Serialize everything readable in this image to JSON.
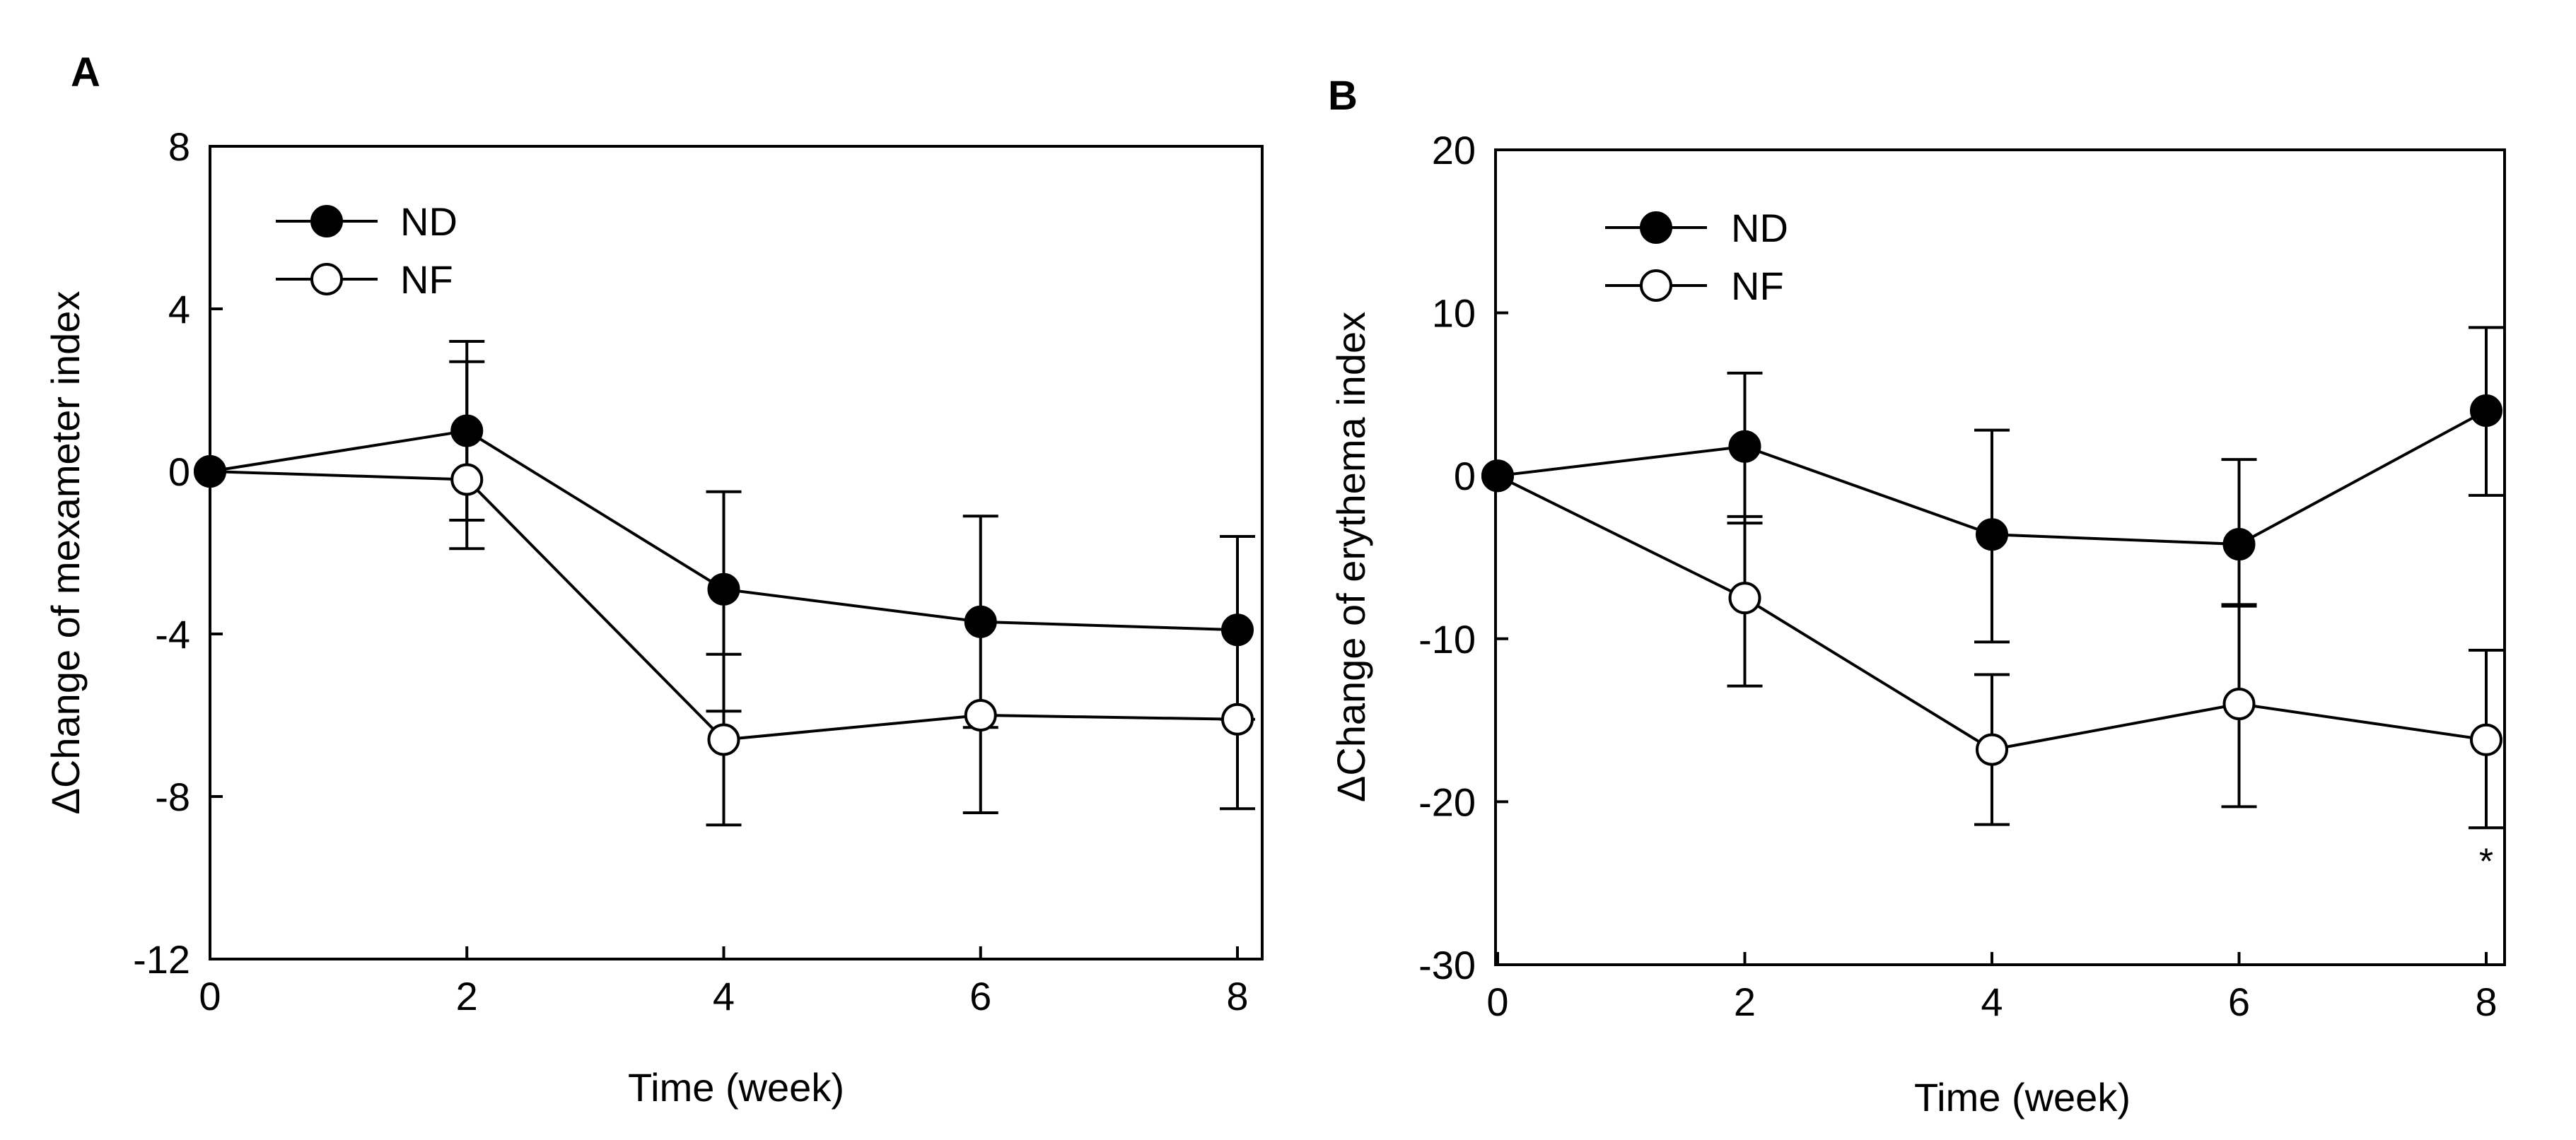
{
  "panels": [
    {
      "panel_label": "A",
      "xlabel": "Time (week)",
      "ylabel": "ΔChange of mexameter index",
      "x_ticks": [
        "0",
        "2",
        "4",
        "6",
        "8"
      ],
      "y_ticks": [
        "8",
        "4",
        "0",
        "-4",
        "-8",
        "-12"
      ],
      "legend": [
        "ND",
        "NF"
      ],
      "annotations": []
    },
    {
      "panel_label": "B",
      "xlabel": "Time (week)",
      "ylabel": "ΔChange of erythema index",
      "x_ticks": [
        "0",
        "2",
        "4",
        "6",
        "8"
      ],
      "y_ticks": [
        "20",
        "10",
        "0",
        "-10",
        "-20",
        "-30"
      ],
      "legend": [
        "ND",
        "NF"
      ],
      "annotations": [
        {
          "text": "*",
          "x": 8,
          "series": "NF"
        }
      ]
    }
  ],
  "chart_data": [
    {
      "type": "line",
      "title": "",
      "xlabel": "Time (week)",
      "ylabel": "ΔChange of mexameter index",
      "xlim": [
        0,
        8.5
      ],
      "ylim": [
        -12,
        8
      ],
      "x": [
        0,
        2,
        4,
        6,
        8
      ],
      "legend_position": "top-left",
      "grid": false,
      "series": [
        {
          "name": "ND",
          "marker": "filled-circle",
          "color": "#000000",
          "values": [
            0,
            1.0,
            -2.9,
            -3.7,
            -3.9
          ],
          "err_lower": [
            0,
            2.9,
            3.0,
            2.6,
            2.2
          ],
          "err_upper": [
            0,
            2.2,
            2.4,
            2.6,
            2.3
          ],
          "err_direction": "both"
        },
        {
          "name": "NF",
          "marker": "open-circle",
          "color": "#000000",
          "values": [
            0,
            -0.2,
            -6.6,
            -6.0,
            -6.1
          ],
          "err_lower": [
            0,
            1.0,
            2.1,
            2.4,
            2.2
          ],
          "err_upper": [
            0,
            2.9,
            2.1,
            0.0,
            0.0
          ],
          "err_direction": "both"
        }
      ]
    },
    {
      "type": "line",
      "title": "",
      "xlabel": "Time (week)",
      "ylabel": "ΔChange of erythema index",
      "xlim": [
        0,
        8.5
      ],
      "ylim": [
        -30,
        20
      ],
      "x": [
        0,
        2,
        4,
        6,
        8
      ],
      "legend_position": "top-left",
      "grid": false,
      "series": [
        {
          "name": "ND",
          "marker": "filled-circle",
          "color": "#000000",
          "values": [
            0,
            1.8,
            -3.6,
            -4.2,
            4.0
          ],
          "err_lower": [
            0,
            4.7,
            6.6,
            3.8,
            5.2
          ],
          "err_upper": [
            0,
            4.5,
            6.4,
            5.2,
            5.1
          ],
          "err_direction": "both"
        },
        {
          "name": "NF",
          "marker": "open-circle",
          "color": "#000000",
          "values": [
            0,
            -7.5,
            -16.8,
            -14.0,
            -16.2
          ],
          "err_lower": [
            0,
            5.4,
            4.6,
            6.3,
            5.4
          ],
          "err_upper": [
            0,
            5.0,
            4.6,
            6.1,
            5.5
          ],
          "err_direction": "both"
        }
      ]
    }
  ]
}
